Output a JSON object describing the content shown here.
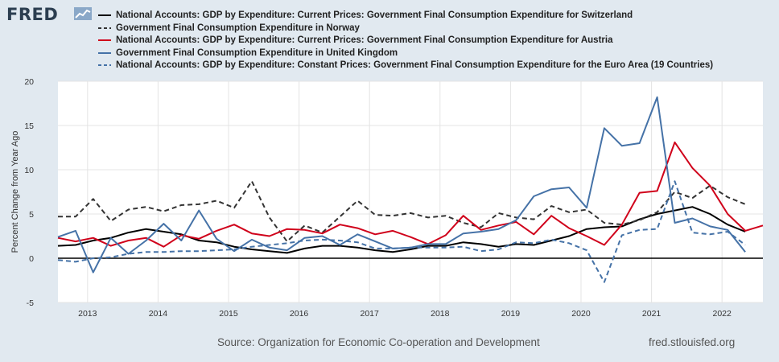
{
  "brand": {
    "logo_text": "FRED",
    "site": "fred.stlouisfed.org"
  },
  "source": "Source: Organization for Economic Co-operation and Development",
  "chart_data": {
    "type": "line",
    "ylabel": "Percent Change from Year Ago",
    "ylim": [
      -5,
      20
    ],
    "yticks": [
      -5,
      0,
      5,
      10,
      15,
      20
    ],
    "xlim": [
      2012.58,
      2022.58
    ],
    "xticks": [
      2013,
      2014,
      2015,
      2016,
      2017,
      2018,
      2019,
      2020,
      2021,
      2022
    ],
    "grid": true,
    "legend_position": "top",
    "series": [
      {
        "name": "National Accounts: GDP by Expenditure: Current Prices: Government Final Consumption Expenditure for Switzerland",
        "color": "#000000",
        "dash": "solid",
        "x": [
          2012.58,
          2012.83,
          2013.08,
          2013.33,
          2013.58,
          2013.83,
          2014.08,
          2014.33,
          2014.58,
          2014.83,
          2015.08,
          2015.33,
          2015.58,
          2015.83,
          2016.08,
          2016.33,
          2016.58,
          2016.83,
          2017.08,
          2017.33,
          2017.58,
          2017.83,
          2018.08,
          2018.33,
          2018.58,
          2018.83,
          2019.08,
          2019.33,
          2019.58,
          2019.83,
          2020.08,
          2020.33,
          2020.58,
          2020.83,
          2021.08,
          2021.33,
          2021.58,
          2021.83,
          2022.08,
          2022.33
        ],
        "y": [
          1.4,
          1.5,
          2.0,
          2.3,
          2.9,
          3.3,
          3.0,
          2.7,
          2.0,
          1.8,
          1.3,
          1.0,
          0.8,
          0.6,
          1.1,
          1.4,
          1.4,
          1.2,
          0.9,
          0.7,
          1.0,
          1.4,
          1.4,
          1.8,
          1.6,
          1.3,
          1.6,
          1.5,
          2.0,
          2.5,
          3.3,
          3.5,
          3.6,
          4.4,
          5.0,
          5.4,
          5.8,
          5.0,
          3.8,
          3.0
        ]
      },
      {
        "name": "Government Final Consumption Expenditure in Norway",
        "color": "#333333",
        "dash": "6,4",
        "x": [
          2012.58,
          2012.83,
          2013.08,
          2013.33,
          2013.58,
          2013.83,
          2014.08,
          2014.33,
          2014.58,
          2014.83,
          2015.08,
          2015.33,
          2015.58,
          2015.83,
          2016.08,
          2016.33,
          2016.58,
          2016.83,
          2017.08,
          2017.33,
          2017.58,
          2017.83,
          2018.08,
          2018.33,
          2018.58,
          2018.83,
          2019.08,
          2019.33,
          2019.58,
          2019.83,
          2020.08,
          2020.33,
          2020.58,
          2020.83,
          2021.08,
          2021.33,
          2021.58,
          2021.83,
          2022.08,
          2022.33
        ],
        "y": [
          4.7,
          4.7,
          6.7,
          4.2,
          5.5,
          5.8,
          5.3,
          6.0,
          6.1,
          6.5,
          5.7,
          8.7,
          4.6,
          1.9,
          3.7,
          2.9,
          4.7,
          6.5,
          4.9,
          4.8,
          5.1,
          4.6,
          4.8,
          4.0,
          3.5,
          5.1,
          4.6,
          4.4,
          5.9,
          5.2,
          5.5,
          4.0,
          3.8,
          4.3,
          5.2,
          7.5,
          6.8,
          8.2,
          6.9,
          6.1
        ]
      },
      {
        "name": "National Accounts: GDP by Expenditure: Current Prices: Government Final Consumption Expenditure for Austria",
        "color": "#d0021b",
        "dash": "solid",
        "x": [
          2012.58,
          2012.83,
          2013.08,
          2013.33,
          2013.58,
          2013.83,
          2014.08,
          2014.33,
          2014.58,
          2014.83,
          2015.08,
          2015.33,
          2015.58,
          2015.83,
          2016.08,
          2016.33,
          2016.58,
          2016.83,
          2017.08,
          2017.33,
          2017.58,
          2017.83,
          2018.08,
          2018.33,
          2018.58,
          2018.83,
          2019.08,
          2019.33,
          2019.58,
          2019.83,
          2020.08,
          2020.33,
          2020.58,
          2020.83,
          2021.08,
          2021.33,
          2021.58,
          2021.83,
          2022.08,
          2022.33,
          2022.58
        ],
        "y": [
          2.3,
          1.9,
          2.3,
          1.4,
          2.0,
          2.3,
          1.3,
          2.6,
          2.2,
          3.1,
          3.8,
          2.8,
          2.5,
          3.3,
          3.2,
          2.8,
          3.8,
          3.4,
          2.7,
          3.1,
          2.4,
          1.6,
          2.6,
          4.8,
          3.2,
          3.7,
          4.1,
          2.7,
          4.8,
          3.4,
          2.5,
          1.5,
          3.8,
          7.4,
          7.6,
          13.1,
          10.2,
          8.2,
          5.0,
          3.1,
          3.7
        ]
      },
      {
        "name": "Government Final Consumption Expenditure in United Kingdom",
        "color": "#4572a7",
        "dash": "solid",
        "x": [
          2012.58,
          2012.83,
          2013.08,
          2013.33,
          2013.58,
          2013.83,
          2014.08,
          2014.33,
          2014.58,
          2014.83,
          2015.08,
          2015.33,
          2015.58,
          2015.83,
          2016.08,
          2016.33,
          2016.58,
          2016.83,
          2017.08,
          2017.33,
          2017.58,
          2017.83,
          2018.08,
          2018.33,
          2018.58,
          2018.83,
          2019.08,
          2019.33,
          2019.58,
          2019.83,
          2020.08,
          2020.33,
          2020.58,
          2020.83,
          2021.08,
          2021.33,
          2021.58,
          2021.83,
          2022.08,
          2022.33
        ],
        "y": [
          2.4,
          3.1,
          -1.6,
          2.3,
          0.5,
          2.0,
          3.9,
          2.0,
          5.4,
          2.2,
          0.8,
          2.1,
          1.2,
          0.9,
          2.3,
          2.5,
          1.5,
          2.7,
          1.9,
          1.1,
          1.2,
          1.6,
          1.6,
          2.8,
          3.0,
          3.3,
          4.3,
          7.0,
          7.8,
          8.0,
          5.7,
          14.7,
          12.7,
          13.0,
          18.2,
          4.0,
          4.5,
          3.6,
          3.2,
          0.7
        ]
      },
      {
        "name": "National Accounts: GDP by Expenditure: Constant Prices: Government Final Consumption Expenditure for the Euro Area (19 Countries)",
        "color": "#4572a7",
        "dash": "6,4",
        "x": [
          2012.58,
          2012.83,
          2013.08,
          2013.33,
          2013.58,
          2013.83,
          2014.08,
          2014.33,
          2014.58,
          2014.83,
          2015.08,
          2015.33,
          2015.58,
          2015.83,
          2016.08,
          2016.33,
          2016.58,
          2016.83,
          2017.08,
          2017.33,
          2017.58,
          2017.83,
          2018.08,
          2018.33,
          2018.58,
          2018.83,
          2019.08,
          2019.33,
          2019.58,
          2019.83,
          2020.08,
          2020.33,
          2020.58,
          2020.83,
          2021.08,
          2021.33,
          2021.58,
          2021.83,
          2022.08,
          2022.33
        ],
        "y": [
          -0.2,
          -0.4,
          0.0,
          0.1,
          0.5,
          0.7,
          0.7,
          0.8,
          0.8,
          0.9,
          1.0,
          1.3,
          1.5,
          1.7,
          2.0,
          2.1,
          2.0,
          1.8,
          1.1,
          1.1,
          1.2,
          1.2,
          1.2,
          1.3,
          0.8,
          1.0,
          1.8,
          1.7,
          2.1,
          1.7,
          0.9,
          -2.7,
          2.6,
          3.2,
          3.3,
          8.7,
          2.9,
          2.7,
          3.0,
          1.5
        ]
      }
    ]
  }
}
